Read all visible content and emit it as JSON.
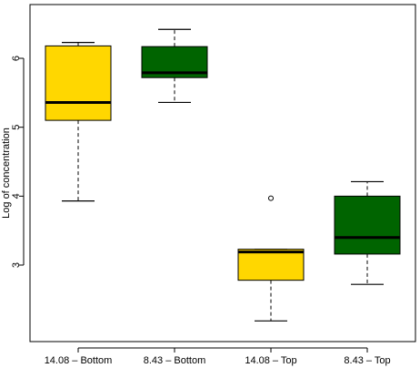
{
  "chart_data": {
    "type": "boxplot",
    "title": "",
    "xlabel": "",
    "ylabel": "Log of concentration",
    "ylim": [
      1.89,
      6.78
    ],
    "yticks": [
      3,
      4,
      5,
      6
    ],
    "categories": [
      "14.08 – Bottom",
      "8.43 – Bottom",
      "14.08 – Top",
      "8.43 – Top"
    ],
    "boxes": [
      {
        "category": "14.08 – Bottom",
        "color": "#FFD700",
        "whisker_low": 3.93,
        "q1": 5.1,
        "median": 5.36,
        "q3": 6.18,
        "whisker_high": 6.23,
        "outliers": []
      },
      {
        "category": "8.43 – Bottom",
        "color": "#006400",
        "whisker_low": 5.36,
        "q1": 5.72,
        "median": 5.79,
        "q3": 6.17,
        "whisker_high": 6.42,
        "outliers": []
      },
      {
        "category": "14.08 – Top",
        "color": "#FFD700",
        "whisker_low": 2.19,
        "q1": 2.78,
        "median": 3.19,
        "q3": 3.23,
        "whisker_high": 3.23,
        "outliers": [
          3.97
        ]
      },
      {
        "category": "8.43 – Top",
        "color": "#006400",
        "whisker_low": 2.72,
        "q1": 3.16,
        "median": 3.4,
        "q3": 4.0,
        "whisker_high": 4.21,
        "outliers": []
      }
    ],
    "grid": false,
    "legend": "none"
  }
}
